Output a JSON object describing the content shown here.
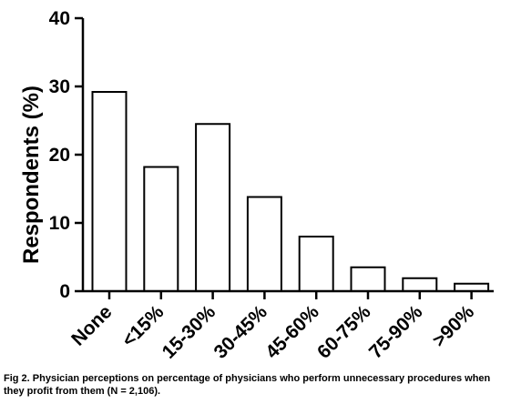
{
  "chart_data": {
    "type": "bar",
    "categories": [
      "None",
      "<15%",
      "15-30%",
      "30-45%",
      "45-60%",
      "60-75%",
      "75-90%",
      ">90%"
    ],
    "values": [
      29.2,
      18.2,
      24.5,
      13.8,
      8.0,
      3.5,
      1.9,
      1.1
    ],
    "ylabel": "Respondents (%)",
    "xlabel": "",
    "ylim": [
      0,
      40
    ],
    "yticks": [
      0,
      10,
      20,
      30,
      40
    ],
    "grid": false
  },
  "caption": "Fig 2. Physician perceptions on percentage of physicians who perform unnecessary procedures when they profit from them (N = 2,106)."
}
